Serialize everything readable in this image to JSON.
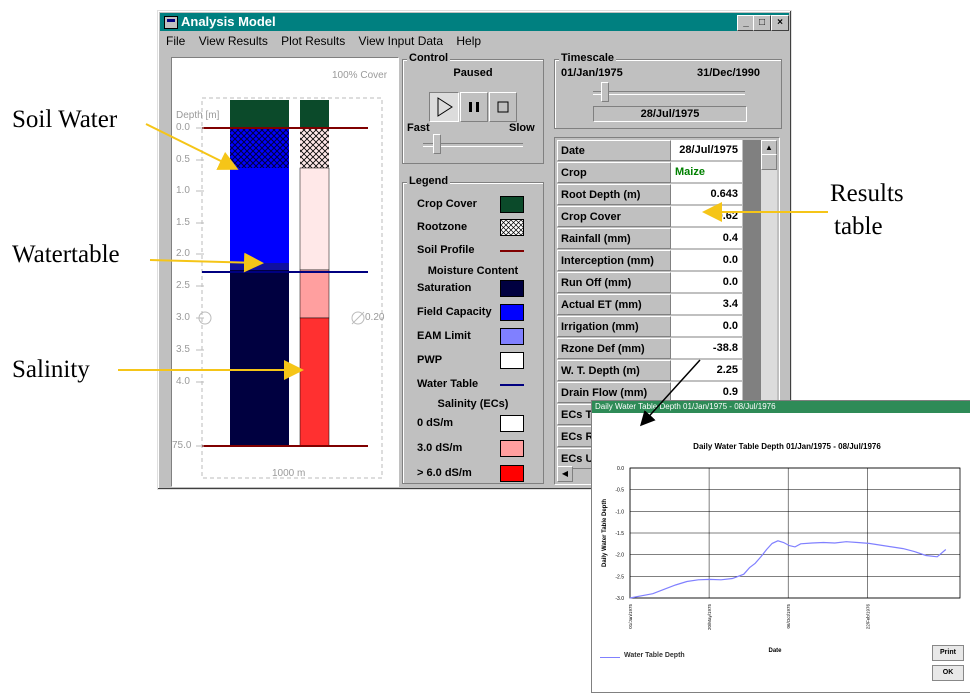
{
  "callouts": {
    "soil_water": "Soil Water",
    "watertable": "Watertable",
    "salinity": "Salinity",
    "results_line1": "Results",
    "results_line2": "table"
  },
  "window": {
    "title": "Analysis Model",
    "minimize": "_",
    "maximize": "□",
    "close": "×"
  },
  "menu": [
    "File",
    "View Results",
    "Plot Results",
    "View Input Data",
    "Help"
  ],
  "profile": {
    "depth_label": "Depth [m]",
    "cover_label": "100% Cover",
    "depth_ticks": [
      "0.0",
      "0.5",
      "1.0",
      "1.5",
      "2.0",
      "2.5",
      "3.0",
      "3.5",
      "4.0",
      "75.0"
    ],
    "width_label": "1000 m",
    "right_value": "0.20"
  },
  "control": {
    "group_label": "Control",
    "status": "Paused",
    "fast": "Fast",
    "slow": "Slow"
  },
  "timescale": {
    "group_label": "Timescale",
    "start": "01/Jan/1975",
    "end": "31/Dec/1990",
    "current": "28/Jul/1975"
  },
  "legend": {
    "group_label": "Legend",
    "crop_cover": "Crop Cover",
    "rootzone": "Rootzone",
    "soil_profile": "Soil Profile",
    "moisture_heading": "Moisture Content",
    "saturation": "Saturation",
    "field_capacity": "Field Capacity",
    "eam_limit": "EAM Limit",
    "pwp": "PWP",
    "water_table": "Water Table",
    "salinity_heading": "Salinity (ECs)",
    "sal_0": "0 dS/m",
    "sal_3": "3.0 dS/m",
    "sal_6": "> 6.0 dS/m"
  },
  "colors": {
    "crop_cover": "#0b4a2a",
    "soil_profile": "#800000",
    "saturation": "#000040",
    "field_capacity": "#0000ff",
    "eam_limit": "#8080ff",
    "pwp": "#ffffff",
    "water_table": "#000080",
    "sal_0": "#ffffff",
    "sal_3": "#ff9f9f",
    "sal_6": "#ff0000",
    "callout_arrow": "#f5c518"
  },
  "results": {
    "rows": [
      {
        "label": "Date",
        "value": "28/Jul/1975"
      },
      {
        "label": "Crop",
        "value": "Maize"
      },
      {
        "label": "Root Depth (m)",
        "value": "0.643"
      },
      {
        "label": "Crop Cover",
        "value": "0.62"
      },
      {
        "label": "Rainfall (mm)",
        "value": "0.4"
      },
      {
        "label": "Interception (mm)",
        "value": "0.0"
      },
      {
        "label": "Run Off (mm)",
        "value": "0.0"
      },
      {
        "label": "Actual ET (mm)",
        "value": "3.4"
      },
      {
        "label": "Irrigation (mm)",
        "value": "0.0"
      },
      {
        "label": "Rzone Def (mm)",
        "value": "-38.8"
      },
      {
        "label": "W. T. Depth (m)",
        "value": "2.25"
      },
      {
        "label": "Drain Flow (mm)",
        "value": "0.9"
      },
      {
        "label": "ECs T",
        "value": ""
      },
      {
        "label": "ECs R",
        "value": ""
      },
      {
        "label": "ECs U",
        "value": ""
      }
    ]
  },
  "popup": {
    "title": "Daily Water Table Depth 01/Jan/1975 - 08/Jul/1976",
    "print_button": "Print",
    "ok_button": "OK",
    "legend_label": "Water Table Depth"
  },
  "chart_data": {
    "type": "line",
    "title": "Daily Water Table Depth 01/Jan/1975 - 08/Jul/1976",
    "xlabel": "Date",
    "ylabel": "Daily Water Table Depth",
    "y_ticks": [
      "0.0",
      "-0.5",
      "-1.0",
      "-1.5",
      "-2.0",
      "-2.5",
      "-3.0"
    ],
    "ylim": [
      -3.0,
      0.0
    ],
    "x_ticks": [
      "01/Jan/1975",
      "20/May/1975",
      "06/Oct/1975",
      "22/Feb/1976"
    ],
    "series": [
      {
        "name": "Water Table Depth",
        "color": "#8080ff",
        "x": [
          0,
          20,
          40,
          60,
          80,
          100,
          120,
          140,
          160,
          180,
          200,
          210,
          220,
          230,
          240,
          250,
          260,
          270,
          280,
          290,
          300,
          320,
          340,
          360,
          380,
          400,
          420,
          440,
          460,
          480,
          500,
          520,
          540,
          555
        ],
        "y": [
          -3.0,
          -2.95,
          -2.9,
          -2.8,
          -2.7,
          -2.62,
          -2.58,
          -2.57,
          -2.58,
          -2.55,
          -2.45,
          -2.3,
          -2.2,
          -2.05,
          -1.88,
          -1.74,
          -1.68,
          -1.72,
          -1.79,
          -1.82,
          -1.75,
          -1.73,
          -1.72,
          -1.73,
          -1.7,
          -1.72,
          -1.74,
          -1.78,
          -1.82,
          -1.86,
          -1.93,
          -2.02,
          -2.05,
          -1.88
        ]
      }
    ]
  }
}
